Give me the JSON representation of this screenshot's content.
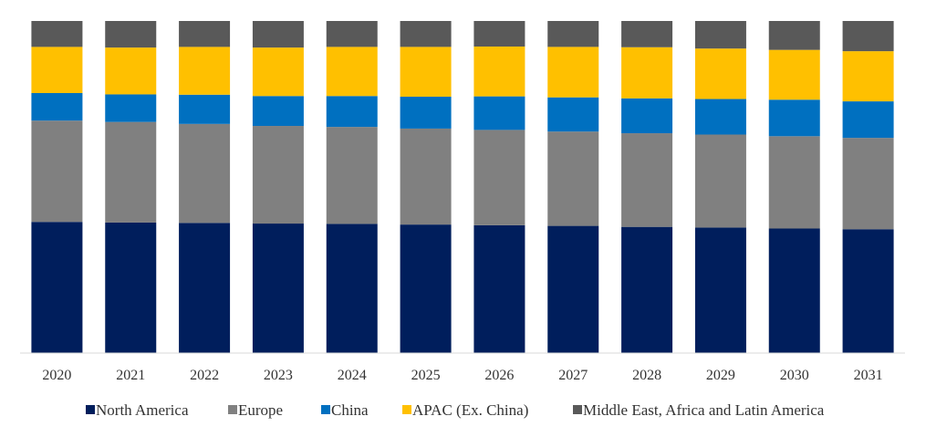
{
  "chart_data": {
    "type": "bar",
    "stacked": true,
    "normalized": true,
    "title": "",
    "xlabel": "",
    "ylabel": "",
    "ylim": [
      0,
      100
    ],
    "grid": false,
    "legend_position": "bottom",
    "categories": [
      "2020",
      "2021",
      "2022",
      "2023",
      "2024",
      "2025",
      "2026",
      "2027",
      "2028",
      "2029",
      "2030",
      "2031"
    ],
    "series": [
      {
        "name": "North America",
        "color": "#001E5C",
        "values": [
          39.5,
          39.3,
          39.2,
          39.0,
          38.9,
          38.7,
          38.5,
          38.3,
          38.0,
          37.8,
          37.5,
          37.3
        ]
      },
      {
        "name": "Europe",
        "color": "#808080",
        "values": [
          30.5,
          30.3,
          29.8,
          29.4,
          29.2,
          28.9,
          28.7,
          28.4,
          28.2,
          28.0,
          27.8,
          27.5
        ]
      },
      {
        "name": "China",
        "color": "#0070C0",
        "values": [
          8.3,
          8.3,
          8.8,
          9.0,
          9.3,
          9.6,
          10.1,
          10.3,
          10.5,
          10.7,
          11.0,
          11.0
        ]
      },
      {
        "name": "APAC (Ex. China)",
        "color": "#FFC000",
        "values": [
          13.9,
          14.1,
          14.4,
          14.6,
          14.8,
          15.0,
          15.0,
          15.2,
          15.4,
          15.2,
          15.0,
          15.1
        ]
      },
      {
        "name": "Middle East, Africa and Latin America",
        "color": "#595959",
        "values": [
          7.8,
          8.0,
          7.8,
          8.0,
          7.8,
          7.8,
          7.7,
          7.8,
          7.9,
          8.3,
          8.7,
          9.1
        ]
      }
    ]
  }
}
